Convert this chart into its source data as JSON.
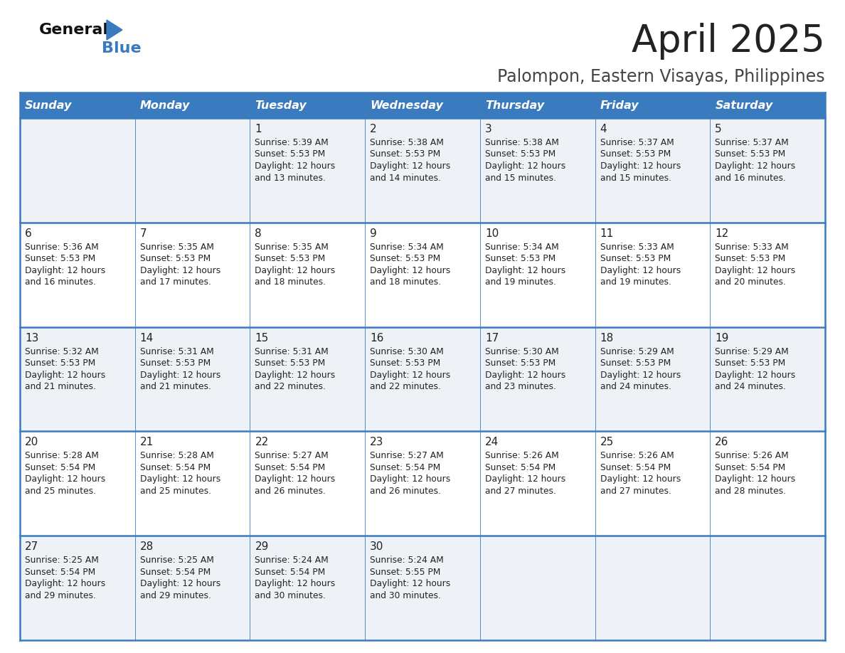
{
  "title": "April 2025",
  "subtitle": "Palompon, Eastern Visayas, Philippines",
  "header_bg": "#3a7abf",
  "header_text_color": "#ffffff",
  "days_of_week": [
    "Sunday",
    "Monday",
    "Tuesday",
    "Wednesday",
    "Thursday",
    "Friday",
    "Saturday"
  ],
  "row_bg_even": "#eef2f7",
  "row_bg_odd": "#ffffff",
  "cell_text_color": "#222222",
  "border_color": "#3a7abf",
  "calendar": [
    [
      {
        "day": "",
        "sunrise": "",
        "sunset": "",
        "daylight": ""
      },
      {
        "day": "",
        "sunrise": "",
        "sunset": "",
        "daylight": ""
      },
      {
        "day": "1",
        "sunrise": "Sunrise: 5:39 AM",
        "sunset": "Sunset: 5:53 PM",
        "daylight": "Daylight: 12 hours\nand 13 minutes."
      },
      {
        "day": "2",
        "sunrise": "Sunrise: 5:38 AM",
        "sunset": "Sunset: 5:53 PM",
        "daylight": "Daylight: 12 hours\nand 14 minutes."
      },
      {
        "day": "3",
        "sunrise": "Sunrise: 5:38 AM",
        "sunset": "Sunset: 5:53 PM",
        "daylight": "Daylight: 12 hours\nand 15 minutes."
      },
      {
        "day": "4",
        "sunrise": "Sunrise: 5:37 AM",
        "sunset": "Sunset: 5:53 PM",
        "daylight": "Daylight: 12 hours\nand 15 minutes."
      },
      {
        "day": "5",
        "sunrise": "Sunrise: 5:37 AM",
        "sunset": "Sunset: 5:53 PM",
        "daylight": "Daylight: 12 hours\nand 16 minutes."
      }
    ],
    [
      {
        "day": "6",
        "sunrise": "Sunrise: 5:36 AM",
        "sunset": "Sunset: 5:53 PM",
        "daylight": "Daylight: 12 hours\nand 16 minutes."
      },
      {
        "day": "7",
        "sunrise": "Sunrise: 5:35 AM",
        "sunset": "Sunset: 5:53 PM",
        "daylight": "Daylight: 12 hours\nand 17 minutes."
      },
      {
        "day": "8",
        "sunrise": "Sunrise: 5:35 AM",
        "sunset": "Sunset: 5:53 PM",
        "daylight": "Daylight: 12 hours\nand 18 minutes."
      },
      {
        "day": "9",
        "sunrise": "Sunrise: 5:34 AM",
        "sunset": "Sunset: 5:53 PM",
        "daylight": "Daylight: 12 hours\nand 18 minutes."
      },
      {
        "day": "10",
        "sunrise": "Sunrise: 5:34 AM",
        "sunset": "Sunset: 5:53 PM",
        "daylight": "Daylight: 12 hours\nand 19 minutes."
      },
      {
        "day": "11",
        "sunrise": "Sunrise: 5:33 AM",
        "sunset": "Sunset: 5:53 PM",
        "daylight": "Daylight: 12 hours\nand 19 minutes."
      },
      {
        "day": "12",
        "sunrise": "Sunrise: 5:33 AM",
        "sunset": "Sunset: 5:53 PM",
        "daylight": "Daylight: 12 hours\nand 20 minutes."
      }
    ],
    [
      {
        "day": "13",
        "sunrise": "Sunrise: 5:32 AM",
        "sunset": "Sunset: 5:53 PM",
        "daylight": "Daylight: 12 hours\nand 21 minutes."
      },
      {
        "day": "14",
        "sunrise": "Sunrise: 5:31 AM",
        "sunset": "Sunset: 5:53 PM",
        "daylight": "Daylight: 12 hours\nand 21 minutes."
      },
      {
        "day": "15",
        "sunrise": "Sunrise: 5:31 AM",
        "sunset": "Sunset: 5:53 PM",
        "daylight": "Daylight: 12 hours\nand 22 minutes."
      },
      {
        "day": "16",
        "sunrise": "Sunrise: 5:30 AM",
        "sunset": "Sunset: 5:53 PM",
        "daylight": "Daylight: 12 hours\nand 22 minutes."
      },
      {
        "day": "17",
        "sunrise": "Sunrise: 5:30 AM",
        "sunset": "Sunset: 5:53 PM",
        "daylight": "Daylight: 12 hours\nand 23 minutes."
      },
      {
        "day": "18",
        "sunrise": "Sunrise: 5:29 AM",
        "sunset": "Sunset: 5:53 PM",
        "daylight": "Daylight: 12 hours\nand 24 minutes."
      },
      {
        "day": "19",
        "sunrise": "Sunrise: 5:29 AM",
        "sunset": "Sunset: 5:53 PM",
        "daylight": "Daylight: 12 hours\nand 24 minutes."
      }
    ],
    [
      {
        "day": "20",
        "sunrise": "Sunrise: 5:28 AM",
        "sunset": "Sunset: 5:54 PM",
        "daylight": "Daylight: 12 hours\nand 25 minutes."
      },
      {
        "day": "21",
        "sunrise": "Sunrise: 5:28 AM",
        "sunset": "Sunset: 5:54 PM",
        "daylight": "Daylight: 12 hours\nand 25 minutes."
      },
      {
        "day": "22",
        "sunrise": "Sunrise: 5:27 AM",
        "sunset": "Sunset: 5:54 PM",
        "daylight": "Daylight: 12 hours\nand 26 minutes."
      },
      {
        "day": "23",
        "sunrise": "Sunrise: 5:27 AM",
        "sunset": "Sunset: 5:54 PM",
        "daylight": "Daylight: 12 hours\nand 26 minutes."
      },
      {
        "day": "24",
        "sunrise": "Sunrise: 5:26 AM",
        "sunset": "Sunset: 5:54 PM",
        "daylight": "Daylight: 12 hours\nand 27 minutes."
      },
      {
        "day": "25",
        "sunrise": "Sunrise: 5:26 AM",
        "sunset": "Sunset: 5:54 PM",
        "daylight": "Daylight: 12 hours\nand 27 minutes."
      },
      {
        "day": "26",
        "sunrise": "Sunrise: 5:26 AM",
        "sunset": "Sunset: 5:54 PM",
        "daylight": "Daylight: 12 hours\nand 28 minutes."
      }
    ],
    [
      {
        "day": "27",
        "sunrise": "Sunrise: 5:25 AM",
        "sunset": "Sunset: 5:54 PM",
        "daylight": "Daylight: 12 hours\nand 29 minutes."
      },
      {
        "day": "28",
        "sunrise": "Sunrise: 5:25 AM",
        "sunset": "Sunset: 5:54 PM",
        "daylight": "Daylight: 12 hours\nand 29 minutes."
      },
      {
        "day": "29",
        "sunrise": "Sunrise: 5:24 AM",
        "sunset": "Sunset: 5:54 PM",
        "daylight": "Daylight: 12 hours\nand 30 minutes."
      },
      {
        "day": "30",
        "sunrise": "Sunrise: 5:24 AM",
        "sunset": "Sunset: 5:55 PM",
        "daylight": "Daylight: 12 hours\nand 30 minutes."
      },
      {
        "day": "",
        "sunrise": "",
        "sunset": "",
        "daylight": ""
      },
      {
        "day": "",
        "sunrise": "",
        "sunset": "",
        "daylight": ""
      },
      {
        "day": "",
        "sunrise": "",
        "sunset": "",
        "daylight": ""
      }
    ]
  ],
  "fig_width": 11.88,
  "fig_height": 9.18,
  "dpi": 100
}
